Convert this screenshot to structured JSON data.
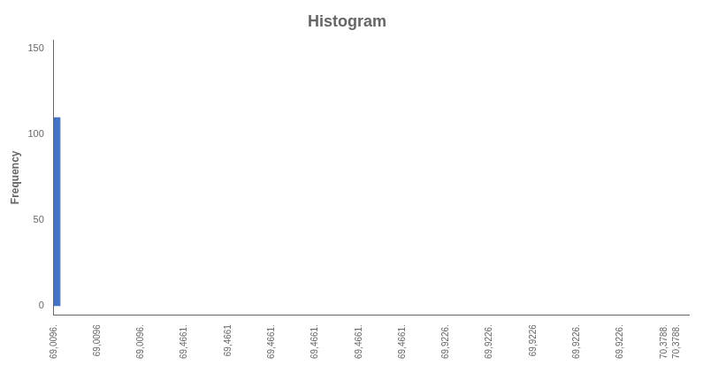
{
  "chart_data": {
    "type": "histogram",
    "title": "Histogram",
    "ylabel": "Frequency",
    "bins": [
      69.0096,
      69.023292
    ],
    "values": [
      110
    ],
    "color": "#4472C4",
    "xlim": [
      69.0096,
      70.406184
    ],
    "xticks": [
      {
        "value": 69.0096,
        "label": "69,0096."
      },
      {
        "value": 69.105444,
        "label": "69,0096"
      },
      {
        "value": 69.201288,
        "label": "69,0096."
      },
      {
        "value": 69.297132,
        "label": "69,4661."
      },
      {
        "value": 69.392976,
        "label": "69,4661"
      },
      {
        "value": 69.48882,
        "label": "69,4661."
      },
      {
        "value": 69.584664,
        "label": "69,4661."
      },
      {
        "value": 69.680508,
        "label": "69,4661."
      },
      {
        "value": 69.776352,
        "label": "69,4661."
      },
      {
        "value": 69.872196,
        "label": "69,9226."
      },
      {
        "value": 69.96804,
        "label": "69,9226."
      },
      {
        "value": 70.063884,
        "label": "69,9226"
      },
      {
        "value": 70.159728,
        "label": "69,9226."
      },
      {
        "value": 70.255572,
        "label": "69,9226."
      },
      {
        "value": 70.351416,
        "label": "70,3788."
      },
      {
        "value": 70.3788,
        "label": "70,3788."
      }
    ],
    "ylim": [
      -5,
      155
    ],
    "yticks": [
      0,
      50,
      100,
      150
    ],
    "grid": false
  }
}
